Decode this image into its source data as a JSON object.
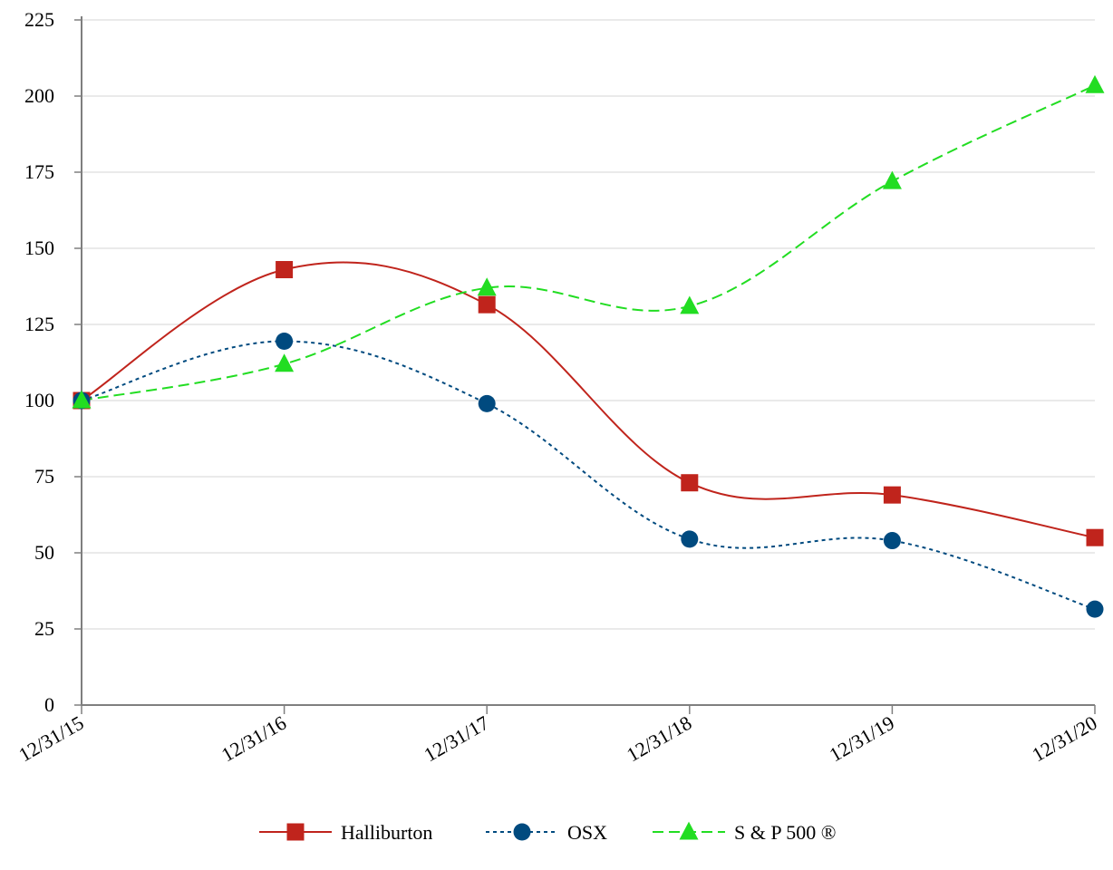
{
  "chart_data": {
    "type": "line",
    "title": "",
    "xlabel": "",
    "ylabel": "",
    "categories": [
      "12/31/15",
      "12/31/16",
      "12/31/17",
      "12/31/18",
      "12/31/19",
      "12/31/20"
    ],
    "ylim": [
      0,
      225
    ],
    "yticks": [
      0,
      25,
      50,
      75,
      100,
      125,
      150,
      175,
      200,
      225
    ],
    "grid": true,
    "legend_position": "bottom-center",
    "series": [
      {
        "name": "Halliburton",
        "values": [
          100,
          143,
          131.5,
          73,
          69,
          55
        ],
        "color": "#c0241c",
        "marker": "square",
        "dash": "solid"
      },
      {
        "name": "OSX",
        "values": [
          100,
          119.5,
          99,
          54.5,
          54,
          31.5
        ],
        "color": "#004a7f",
        "marker": "circle",
        "dash": "dotted"
      },
      {
        "name": "S & P 500 ®",
        "values": [
          100,
          112,
          137,
          131,
          172,
          203.5
        ],
        "color": "#22dd22",
        "marker": "triangle",
        "dash": "dashed"
      }
    ]
  }
}
